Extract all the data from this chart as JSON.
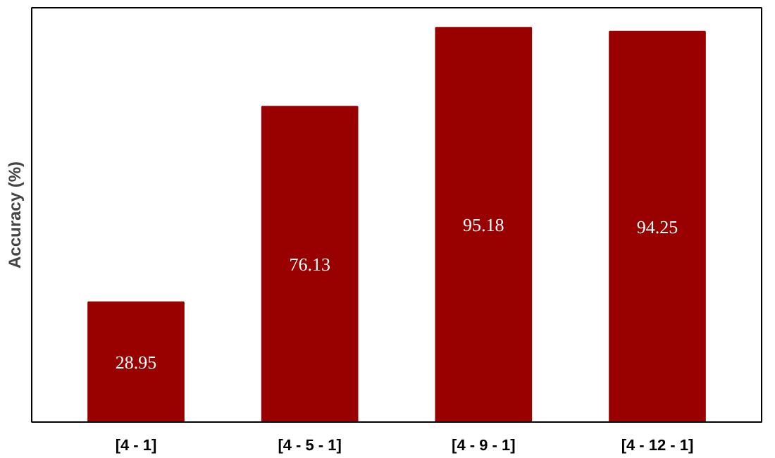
{
  "chart_data": {
    "type": "bar",
    "ylabel": "Accuracy (%)",
    "categories": [
      "[4 - 1]",
      "[4 - 5 - 1]",
      "[4 - 9 - 1]",
      "[4 - 12 - 1]"
    ],
    "values": [
      28.95,
      76.13,
      95.18,
      94.25
    ],
    "color": "#990000",
    "ylim": [
      0,
      100
    ],
    "data_labels": true,
    "tick_labels": "x",
    "grid": false
  }
}
